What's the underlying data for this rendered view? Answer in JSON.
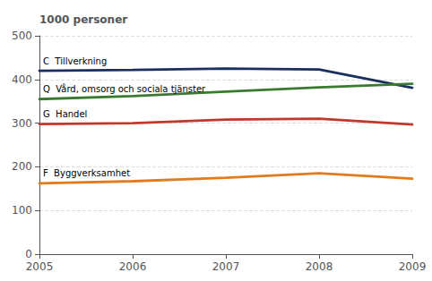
{
  "chart_data": {
    "type": "line",
    "ylabel": "1000 personer",
    "x": [
      2005,
      2006,
      2007,
      2008,
      2009
    ],
    "series": [
      {
        "name": "C  Tillverkning",
        "color": "#1a2f5e",
        "values": [
          420,
          422,
          425,
          423,
          381
        ]
      },
      {
        "name": "Q  Vård, omsorg och sociala tjänster",
        "color": "#3a7a30",
        "values": [
          355,
          362,
          372,
          382,
          390
        ]
      },
      {
        "name": "G  Handel",
        "color": "#c0392b",
        "values": [
          298,
          300,
          308,
          310,
          297
        ]
      },
      {
        "name": "F  Byggverksamhet",
        "color": "#e07b20",
        "values": [
          162,
          167,
          175,
          185,
          173
        ]
      }
    ],
    "xlim": [
      2005,
      2009
    ],
    "xticks": [
      2005,
      2006,
      2007,
      2008,
      2009
    ],
    "ylim": [
      0,
      500
    ],
    "yticks": [
      0,
      100,
      200,
      300,
      400,
      500
    ],
    "grid": true
  }
}
